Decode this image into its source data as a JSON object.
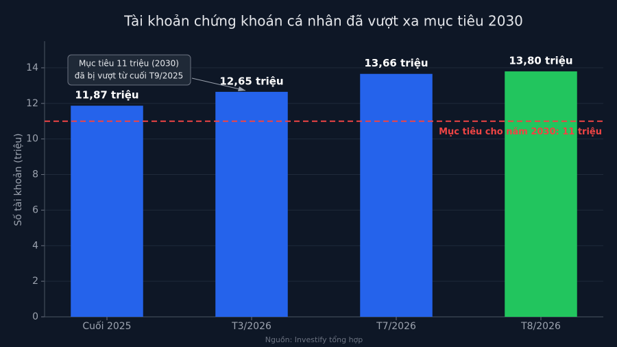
{
  "chart_data": {
    "type": "bar",
    "title": "Tài khoản chứng khoán cá nhân đã vượt xa mục tiêu 2030",
    "y_label": "Số tài khoản (triệu)",
    "source": "Nguồn: Investify tổng hợp",
    "categories": [
      "Cuối 2025",
      "T3/2026",
      "T7/2026",
      "T8/2026"
    ],
    "values": [
      11.87,
      12.65,
      13.66,
      13.8
    ],
    "value_labels": [
      "11,87 triệu",
      "12,65 triệu",
      "13,66 triệu",
      "13,80 triệu"
    ],
    "colors": [
      "#2563eb",
      "#2563eb",
      "#2563eb",
      "#22c55e"
    ],
    "ylim": [
      0,
      15.5
    ],
    "yticks": [
      0,
      2,
      4,
      6,
      8,
      10,
      12,
      14
    ],
    "grid": true,
    "reference_line": {
      "value": 11,
      "label": "Mục tiêu cho năm 2030: 11 triệu",
      "color": "#ef4444"
    },
    "annotation": {
      "lines": [
        "Mục tiêu 11 triệu (2030)",
        "đã bị vượt từ cuối T9/2025"
      ]
    }
  }
}
